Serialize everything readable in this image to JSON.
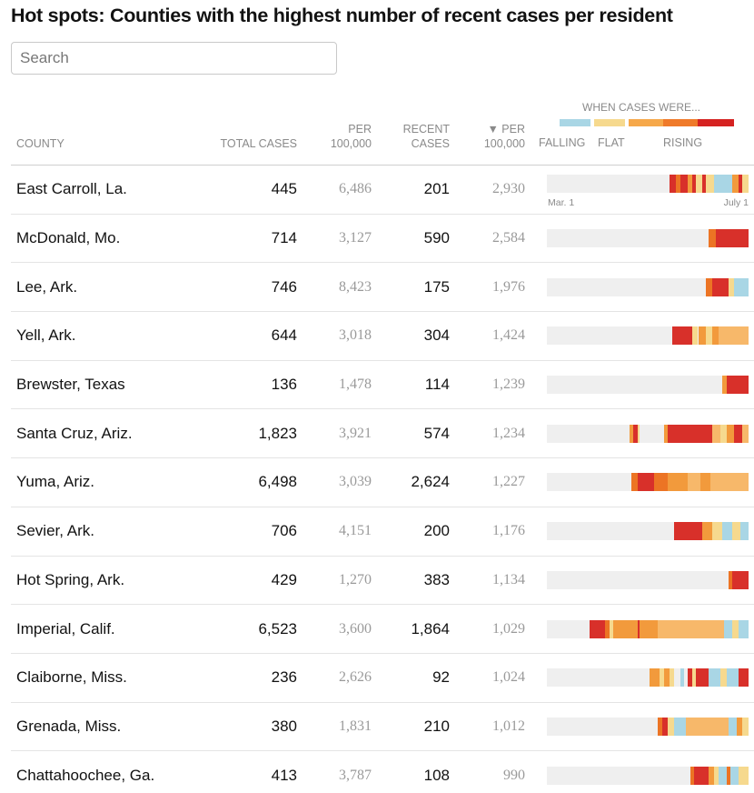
{
  "title": "Hot spots: Counties with the highest number of recent cases per resident",
  "search": {
    "placeholder": "Search"
  },
  "headers": {
    "county": "COUNTY",
    "total": "TOTAL CASES",
    "per_1": "PER",
    "per_2": "100,000",
    "recent_1": "RECENT",
    "recent_2": "CASES",
    "recent_per_1": "▼ PER",
    "recent_per_2": "100,000"
  },
  "legend": {
    "title": "WHEN CASES WERE...",
    "falling": "FALLING",
    "flat": "FLAT",
    "rising": "RISING",
    "colors": {
      "falling": "#a9d6e5",
      "flat": "#f6d98e",
      "rising_low": "#f6a84a",
      "rising_mid": "#ef7a2a",
      "rising_high": "#d52221"
    }
  },
  "axis": {
    "start": "Mar. 1",
    "end": "July 1"
  },
  "colors": {
    "falling": "#a9d6e5",
    "flat": "#f6d98e",
    "light_orange": "#f7b86a",
    "orange": "#f29a3c",
    "dark_orange": "#ec7424",
    "red": "#d8302a",
    "dark_red": "#b81c1c",
    "none": "#efefef"
  },
  "rows": [
    {
      "county": "East Carroll, La.",
      "total": "445",
      "per": "6,486",
      "recent": "201",
      "recent_per": "2,930",
      "trend": [
        [
          0.61,
          0.64,
          "red"
        ],
        [
          0.64,
          0.66,
          "dark_orange"
        ],
        [
          0.66,
          0.7,
          "red"
        ],
        [
          0.7,
          0.72,
          "orange"
        ],
        [
          0.72,
          0.74,
          "red"
        ],
        [
          0.74,
          0.77,
          "flat"
        ],
        [
          0.77,
          0.79,
          "red"
        ],
        [
          0.79,
          0.83,
          "flat"
        ],
        [
          0.83,
          0.92,
          "falling"
        ],
        [
          0.92,
          0.95,
          "orange"
        ],
        [
          0.95,
          0.97,
          "red"
        ],
        [
          0.97,
          1.0,
          "flat"
        ]
      ]
    },
    {
      "county": "McDonald, Mo.",
      "total": "714",
      "per": "3,127",
      "recent": "590",
      "recent_per": "2,584",
      "trend": [
        [
          0.8,
          0.84,
          "dark_orange"
        ],
        [
          0.84,
          1.0,
          "red"
        ]
      ]
    },
    {
      "county": "Lee, Ark.",
      "total": "746",
      "per": "8,423",
      "recent": "175",
      "recent_per": "1,976",
      "trend": [
        [
          0.79,
          0.82,
          "dark_orange"
        ],
        [
          0.82,
          0.9,
          "red"
        ],
        [
          0.9,
          0.93,
          "flat"
        ],
        [
          0.93,
          1.0,
          "falling"
        ]
      ]
    },
    {
      "county": "Yell, Ark.",
      "total": "644",
      "per": "3,018",
      "recent": "304",
      "recent_per": "1,424",
      "trend": [
        [
          0.62,
          0.72,
          "red"
        ],
        [
          0.72,
          0.75,
          "flat"
        ],
        [
          0.75,
          0.79,
          "orange"
        ],
        [
          0.79,
          0.82,
          "flat"
        ],
        [
          0.82,
          0.85,
          "orange"
        ],
        [
          0.85,
          0.9,
          "light_orange"
        ],
        [
          0.9,
          1.0,
          "light_orange"
        ]
      ]
    },
    {
      "county": "Brewster, Texas",
      "total": "136",
      "per": "1,478",
      "recent": "114",
      "recent_per": "1,239",
      "trend": [
        [
          0.87,
          0.89,
          "orange"
        ],
        [
          0.89,
          1.0,
          "red"
        ]
      ]
    },
    {
      "county": "Santa Cruz, Ariz.",
      "total": "1,823",
      "per": "3,921",
      "recent": "574",
      "recent_per": "1,234",
      "trend": [
        [
          0.41,
          0.43,
          "orange"
        ],
        [
          0.43,
          0.45,
          "red"
        ],
        [
          0.45,
          0.46,
          "flat"
        ],
        [
          0.58,
          0.6,
          "orange"
        ],
        [
          0.6,
          0.82,
          "red"
        ],
        [
          0.82,
          0.86,
          "light_orange"
        ],
        [
          0.86,
          0.89,
          "flat"
        ],
        [
          0.89,
          0.93,
          "orange"
        ],
        [
          0.93,
          0.97,
          "red"
        ],
        [
          0.97,
          1.0,
          "light_orange"
        ]
      ]
    },
    {
      "county": "Yuma, Ariz.",
      "total": "6,498",
      "per": "3,039",
      "recent": "2,624",
      "recent_per": "1,227",
      "trend": [
        [
          0.42,
          0.45,
          "dark_orange"
        ],
        [
          0.45,
          0.53,
          "red"
        ],
        [
          0.53,
          0.6,
          "dark_orange"
        ],
        [
          0.6,
          0.7,
          "orange"
        ],
        [
          0.7,
          0.76,
          "light_orange"
        ],
        [
          0.76,
          0.81,
          "orange"
        ],
        [
          0.81,
          0.85,
          "light_orange"
        ],
        [
          0.85,
          1.0,
          "light_orange"
        ]
      ]
    },
    {
      "county": "Sevier, Ark.",
      "total": "706",
      "per": "4,151",
      "recent": "200",
      "recent_per": "1,176",
      "trend": [
        [
          0.63,
          0.77,
          "red"
        ],
        [
          0.77,
          0.82,
          "orange"
        ],
        [
          0.82,
          0.87,
          "flat"
        ],
        [
          0.87,
          0.92,
          "falling"
        ],
        [
          0.92,
          0.96,
          "flat"
        ],
        [
          0.96,
          1.0,
          "falling"
        ]
      ]
    },
    {
      "county": "Hot Spring, Ark.",
      "total": "429",
      "per": "1,270",
      "recent": "383",
      "recent_per": "1,134",
      "trend": [
        [
          0.9,
          0.92,
          "dark_orange"
        ],
        [
          0.92,
          1.0,
          "red"
        ]
      ]
    },
    {
      "county": "Imperial, Calif.",
      "total": "6,523",
      "per": "3,600",
      "recent": "1,864",
      "recent_per": "1,029",
      "trend": [
        [
          0.21,
          0.29,
          "red"
        ],
        [
          0.29,
          0.31,
          "dark_orange"
        ],
        [
          0.31,
          0.33,
          "flat"
        ],
        [
          0.33,
          0.45,
          "orange"
        ],
        [
          0.45,
          0.46,
          "red"
        ],
        [
          0.46,
          0.55,
          "orange"
        ],
        [
          0.55,
          0.88,
          "light_orange"
        ],
        [
          0.88,
          0.92,
          "falling"
        ],
        [
          0.92,
          0.95,
          "flat"
        ],
        [
          0.95,
          1.0,
          "falling"
        ]
      ]
    },
    {
      "county": "Claiborne, Miss.",
      "total": "236",
      "per": "2,626",
      "recent": "92",
      "recent_per": "1,024",
      "trend": [
        [
          0.51,
          0.56,
          "orange"
        ],
        [
          0.56,
          0.58,
          "flat"
        ],
        [
          0.58,
          0.61,
          "orange"
        ],
        [
          0.61,
          0.63,
          "flat"
        ],
        [
          0.66,
          0.68,
          "falling"
        ],
        [
          0.7,
          0.72,
          "red"
        ],
        [
          0.72,
          0.74,
          "flat"
        ],
        [
          0.74,
          0.8,
          "red"
        ],
        [
          0.8,
          0.86,
          "falling"
        ],
        [
          0.86,
          0.89,
          "flat"
        ],
        [
          0.89,
          0.95,
          "falling"
        ],
        [
          0.95,
          1.0,
          "red"
        ]
      ]
    },
    {
      "county": "Grenada, Miss.",
      "total": "380",
      "per": "1,831",
      "recent": "210",
      "recent_per": "1,012",
      "trend": [
        [
          0.55,
          0.57,
          "dark_orange"
        ],
        [
          0.57,
          0.6,
          "red"
        ],
        [
          0.6,
          0.63,
          "flat"
        ],
        [
          0.63,
          0.69,
          "falling"
        ],
        [
          0.69,
          0.9,
          "light_orange"
        ],
        [
          0.9,
          0.94,
          "falling"
        ],
        [
          0.94,
          0.97,
          "orange"
        ],
        [
          0.97,
          1.0,
          "flat"
        ]
      ]
    },
    {
      "county": "Chattahoochee, Ga.",
      "total": "413",
      "per": "3,787",
      "recent": "108",
      "recent_per": "990",
      "trend": [
        [
          0.71,
          0.73,
          "dark_orange"
        ],
        [
          0.73,
          0.8,
          "red"
        ],
        [
          0.8,
          0.83,
          "orange"
        ],
        [
          0.83,
          0.85,
          "flat"
        ],
        [
          0.85,
          0.89,
          "falling"
        ],
        [
          0.89,
          0.91,
          "dark_orange"
        ],
        [
          0.91,
          0.95,
          "falling"
        ],
        [
          0.95,
          1.0,
          "flat"
        ]
      ]
    }
  ]
}
